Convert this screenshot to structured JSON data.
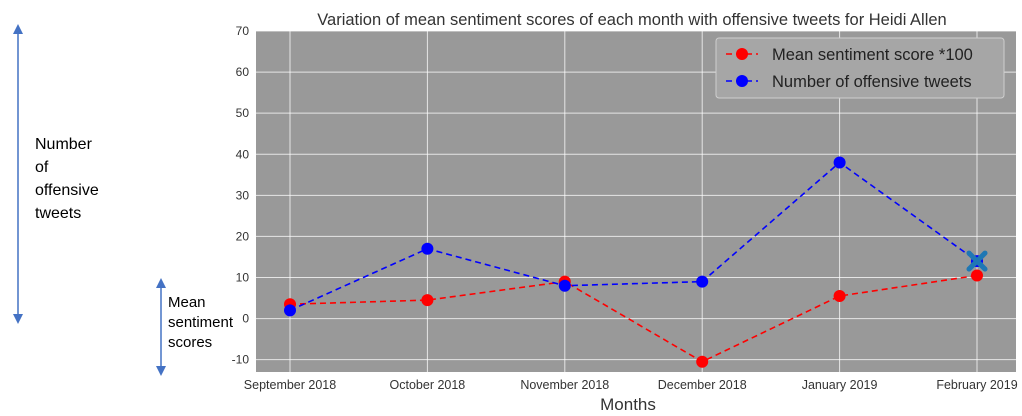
{
  "annotations": {
    "tweets_label": "Number\nof\noffensive\ntweets",
    "sentiment_label": "Mean\nsentiment\nscores"
  },
  "chart_data": {
    "type": "line",
    "title": "Variation of mean sentiment scores of each month with offensive tweets for Heidi Allen",
    "xlabel": "Months",
    "ylabel": "",
    "categories": [
      "September 2018",
      "October 2018",
      "November 2018",
      "December 2018",
      "January 2019",
      "February 2019"
    ],
    "ylim": [
      -13,
      70
    ],
    "yticks": [
      -10,
      0,
      10,
      20,
      30,
      40,
      50,
      60,
      70
    ],
    "grid": true,
    "legend_position": "top-right",
    "plot_background": "#999999",
    "series": [
      {
        "name": "Mean sentiment score *100",
        "color": "#ff0000",
        "values": [
          3.5,
          4.5,
          9,
          -10.5,
          5.5,
          10.5
        ]
      },
      {
        "name": "Number of offensive tweets",
        "color": "#0000ff",
        "values": [
          2,
          17,
          8,
          9,
          38,
          14
        ]
      }
    ],
    "marker": {
      "category": "February 2019",
      "value": 14,
      "symbol": "x",
      "color": "#1f77b4"
    }
  }
}
